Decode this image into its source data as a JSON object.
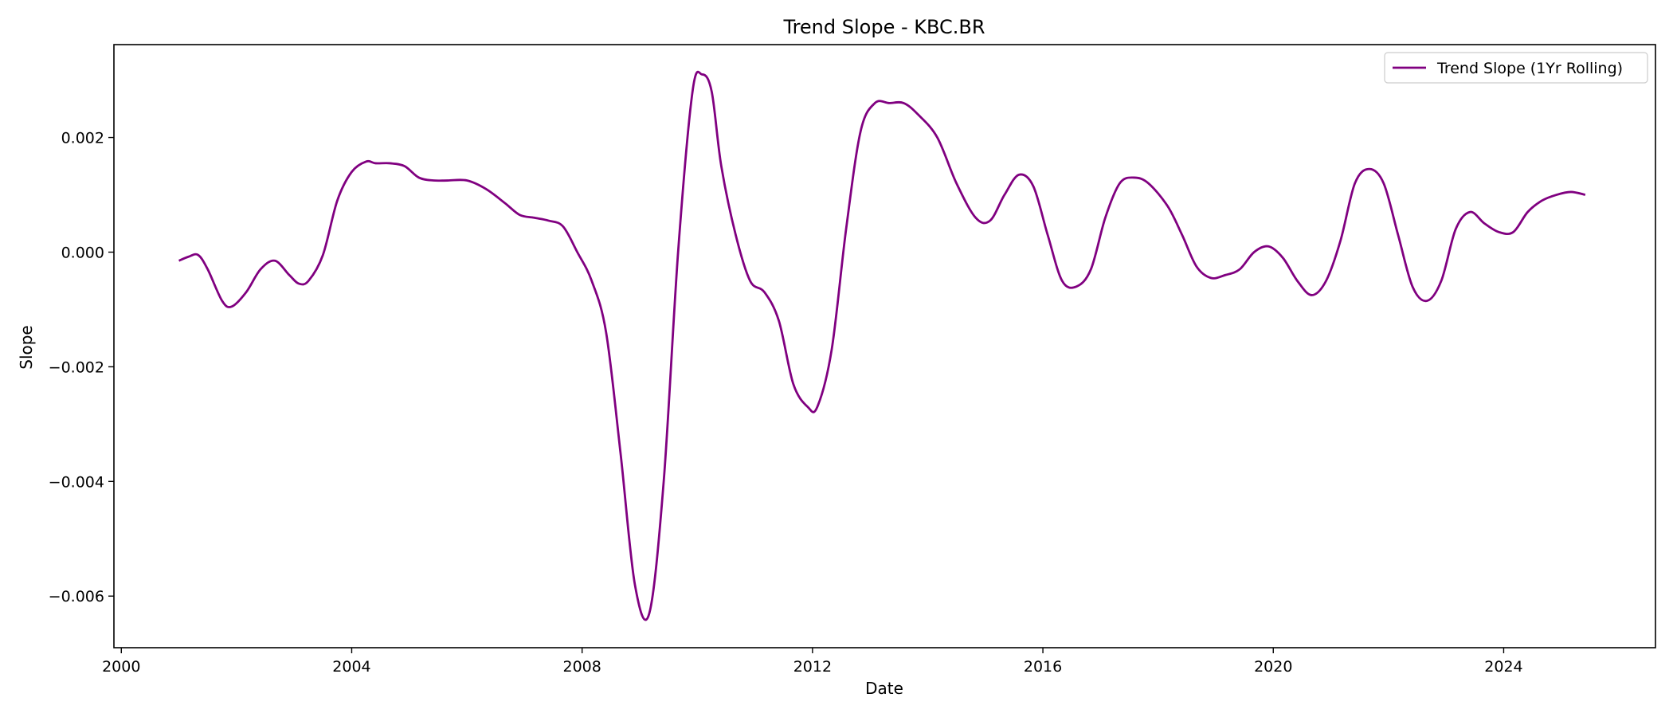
{
  "chart_data": {
    "type": "line",
    "title": "Trend Slope - KBC.BR",
    "xlabel": "Date",
    "ylabel": "Slope",
    "xlim": [
      "1999-11-15",
      "2026-08-20"
    ],
    "ylim": [
      -0.0069,
      0.00362
    ],
    "x_ticks": [
      "2000",
      "2004",
      "2008",
      "2012",
      "2016",
      "2020",
      "2024"
    ],
    "y_ticks": [
      "0.002",
      "0.000",
      "−0.002",
      "−0.004",
      "−0.006"
    ],
    "y_tick_values": [
      0.002,
      0.0,
      -0.002,
      -0.004,
      -0.006
    ],
    "grid": false,
    "legend_position": "top-right",
    "series": [
      {
        "name": "Trend Slope (1Yr Rolling)",
        "color": "#800080",
        "x": [
          "2001-01",
          "2001-03",
          "2001-05",
          "2001-07",
          "2001-10",
          "2001-12",
          "2002-03",
          "2002-06",
          "2002-09",
          "2002-12",
          "2003-02",
          "2003-04",
          "2003-07",
          "2003-10",
          "2004-01",
          "2004-04",
          "2004-06",
          "2004-09",
          "2004-12",
          "2005-03",
          "2005-06",
          "2005-09",
          "2006-01",
          "2006-05",
          "2006-09",
          "2006-12",
          "2007-03",
          "2007-06",
          "2007-09",
          "2007-12",
          "2008-03",
          "2008-06",
          "2008-09",
          "2008-12",
          "2009-03",
          "2009-06",
          "2009-09",
          "2009-12",
          "2010-02",
          "2010-04",
          "2010-06",
          "2010-09",
          "2010-12",
          "2011-03",
          "2011-06",
          "2011-09",
          "2011-12",
          "2012-02",
          "2012-05",
          "2012-08",
          "2012-11",
          "2013-02",
          "2013-05",
          "2013-08",
          "2013-11",
          "2014-03",
          "2014-07",
          "2014-11",
          "2015-02",
          "2015-05",
          "2015-08",
          "2015-11",
          "2016-02",
          "2016-05",
          "2016-08",
          "2016-11",
          "2017-02",
          "2017-05",
          "2017-08",
          "2017-11",
          "2018-03",
          "2018-06",
          "2018-09",
          "2018-12",
          "2019-03",
          "2019-06",
          "2019-09",
          "2019-12",
          "2020-03",
          "2020-06",
          "2020-09",
          "2020-12",
          "2021-03",
          "2021-06",
          "2021-09",
          "2021-12",
          "2022-03",
          "2022-06",
          "2022-09",
          "2022-12",
          "2023-03",
          "2023-06",
          "2023-09",
          "2023-12",
          "2024-03",
          "2024-06",
          "2024-09",
          "2024-12",
          "2025-03",
          "2025-06"
        ],
        "y": [
          -0.00015,
          -8e-05,
          -5e-05,
          -0.0003,
          -0.00085,
          -0.00095,
          -0.0007,
          -0.0003,
          -0.00015,
          -0.0004,
          -0.00055,
          -0.0005,
          -5e-05,
          0.0009,
          0.0014,
          0.00158,
          0.00155,
          0.00155,
          0.0015,
          0.0013,
          0.00125,
          0.00125,
          0.00125,
          0.0011,
          0.00085,
          0.00065,
          0.0006,
          0.00055,
          0.00045,
          0.0,
          -0.0005,
          -0.0014,
          -0.0035,
          -0.0058,
          -0.0063,
          -0.004,
          0.0,
          0.0028,
          0.0031,
          0.0028,
          0.0015,
          0.0003,
          -0.0005,
          -0.0007,
          -0.0012,
          -0.0023,
          -0.0027,
          -0.0027,
          -0.0017,
          0.0004,
          0.0021,
          0.0026,
          0.0026,
          0.0026,
          0.0024,
          0.002,
          0.0012,
          0.0006,
          0.00055,
          0.001,
          0.00135,
          0.00115,
          0.0003,
          -0.0005,
          -0.0006,
          -0.0003,
          0.0006,
          0.0012,
          0.0013,
          0.0012,
          0.0008,
          0.0003,
          -0.00025,
          -0.00045,
          -0.0004,
          -0.0003,
          0.0,
          0.0001,
          -0.0001,
          -0.0005,
          -0.00075,
          -0.0005,
          0.0002,
          0.0012,
          0.00145,
          0.0012,
          0.0003,
          -0.0006,
          -0.00085,
          -0.0005,
          0.0004,
          0.0007,
          0.0005,
          0.00035,
          0.00035,
          0.0007,
          0.0009,
          0.001,
          0.00105,
          0.001
        ]
      }
    ]
  }
}
